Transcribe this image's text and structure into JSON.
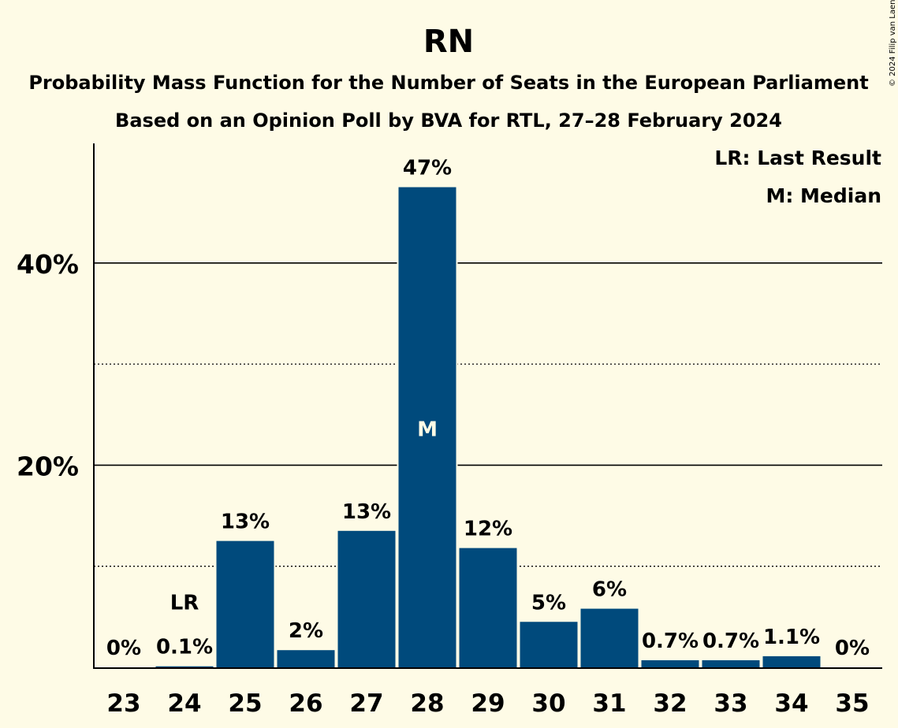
{
  "chart_data": {
    "type": "bar",
    "title": "RN",
    "subtitle_lines": [
      "Probability Mass Function for the Number of Seats in the European Parliament",
      "Based on an Opinion Poll by BVA for RTL, 27–28 February 2024"
    ],
    "copyright": "© 2024 Filip van Laenen",
    "legend": {
      "placement": "top-right",
      "items": [
        "LR: Last Result",
        "M: Median"
      ]
    },
    "categories": [
      "23",
      "24",
      "25",
      "26",
      "27",
      "28",
      "29",
      "30",
      "31",
      "32",
      "33",
      "34",
      "35"
    ],
    "values": [
      0,
      0.1,
      12.5,
      1.7,
      13.5,
      47.5,
      11.8,
      4.5,
      5.8,
      0.7,
      0.7,
      1.1,
      0
    ],
    "labels": [
      "0%",
      "0.1%",
      "13%",
      "2%",
      "13%",
      "47%",
      "12%",
      "5%",
      "6%",
      "0.7%",
      "0.7%",
      "1.1%",
      "0%"
    ],
    "last_result": {
      "category": "24",
      "marker": "LR"
    },
    "median": {
      "category": "28",
      "marker": "M"
    },
    "yticks": [
      {
        "value": 20,
        "label": "20%"
      },
      {
        "value": 40,
        "label": "40%"
      }
    ],
    "minor_gridlines": [
      10,
      30
    ],
    "ylim": [
      0,
      52
    ],
    "colors": {
      "bar": "#004a7c",
      "background": "#fefbe6",
      "median_text": "#fefbe6"
    }
  }
}
